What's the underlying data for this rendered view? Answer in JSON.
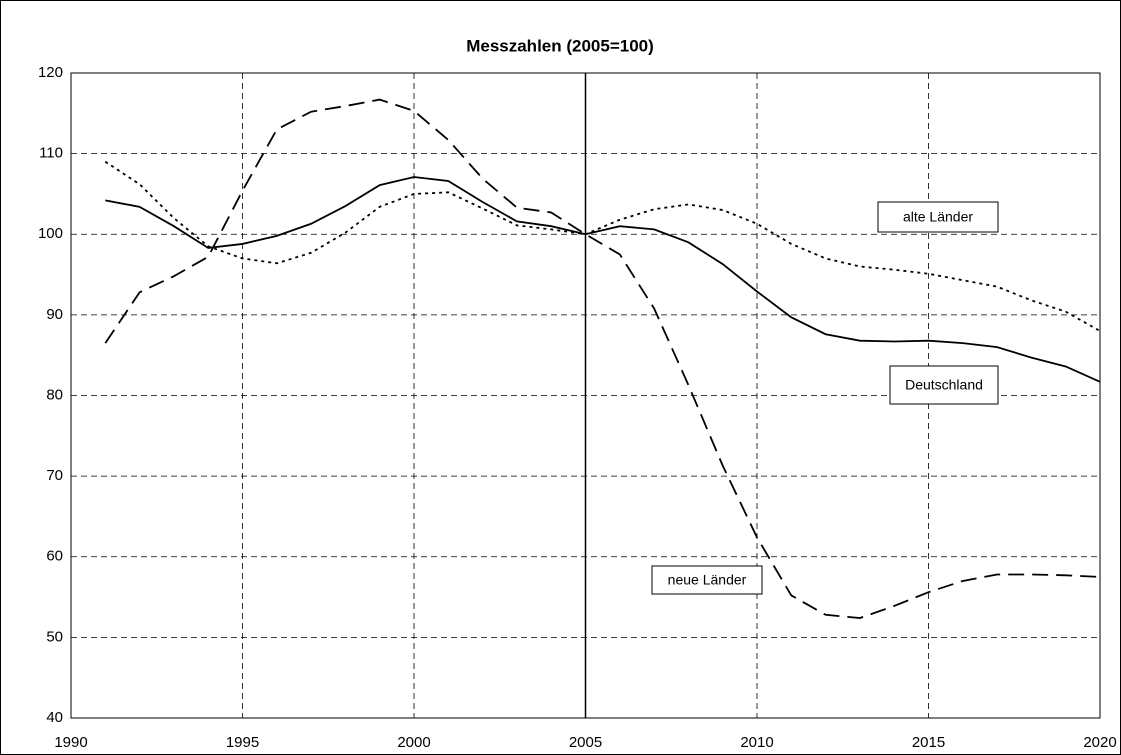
{
  "chart_data": {
    "type": "line",
    "title": "Messzahlen (2005=100)",
    "x": [
      1991,
      1992,
      1993,
      1994,
      1995,
      1996,
      1997,
      1998,
      1999,
      2000,
      2001,
      2002,
      2003,
      2004,
      2005,
      2006,
      2007,
      2008,
      2009,
      2010,
      2011,
      2012,
      2013,
      2014,
      2015,
      2016,
      2017,
      2018,
      2019,
      2020
    ],
    "series": [
      {
        "name": "Deutschland",
        "color": "#000000",
        "dash": "solid",
        "values": [
          104.2,
          103.4,
          101,
          98.3,
          98.8,
          99.8,
          101.3,
          103.5,
          106.1,
          107.1,
          106.6,
          104,
          101.6,
          101,
          100,
          101,
          100.6,
          99,
          96.3,
          92.9,
          89.7,
          87.6,
          86.8,
          86.7,
          86.8,
          86.5,
          86,
          84.7,
          83.6,
          81.7
        ]
      },
      {
        "name": "alte Länder",
        "color": "#000000",
        "dash": "dotted",
        "values": [
          109,
          106.2,
          102,
          98.5,
          97,
          96.4,
          97.7,
          100.2,
          103.4,
          105,
          105.2,
          103.2,
          101.1,
          100.6,
          100,
          101.8,
          103.1,
          103.7,
          103,
          101.3,
          98.8,
          97,
          96,
          95.6,
          95.1,
          94.3,
          93.5,
          91.8,
          90.4,
          88
        ]
      },
      {
        "name": "neue Länder",
        "color": "#000000",
        "dash": "dashed",
        "values": [
          86.5,
          92.8,
          94.8,
          97.2,
          105.4,
          113,
          115.2,
          115.9,
          116.7,
          115.3,
          111.7,
          106.9,
          103.3,
          102.7,
          100,
          97.5,
          90.8,
          81.3,
          71.3,
          62.4,
          55.2,
          52.8,
          52.4,
          53.9,
          55.6,
          57,
          57.8,
          57.8,
          57.7,
          57.5
        ]
      }
    ],
    "xlim": [
      1990,
      2020
    ],
    "xticks": [
      1990,
      1995,
      2000,
      2005,
      2010,
      2015,
      2020
    ],
    "ylim": [
      40,
      120
    ],
    "yticks": [
      40,
      50,
      60,
      70,
      80,
      90,
      100,
      110,
      120
    ],
    "reference_line_x": 2005,
    "grid": true
  }
}
